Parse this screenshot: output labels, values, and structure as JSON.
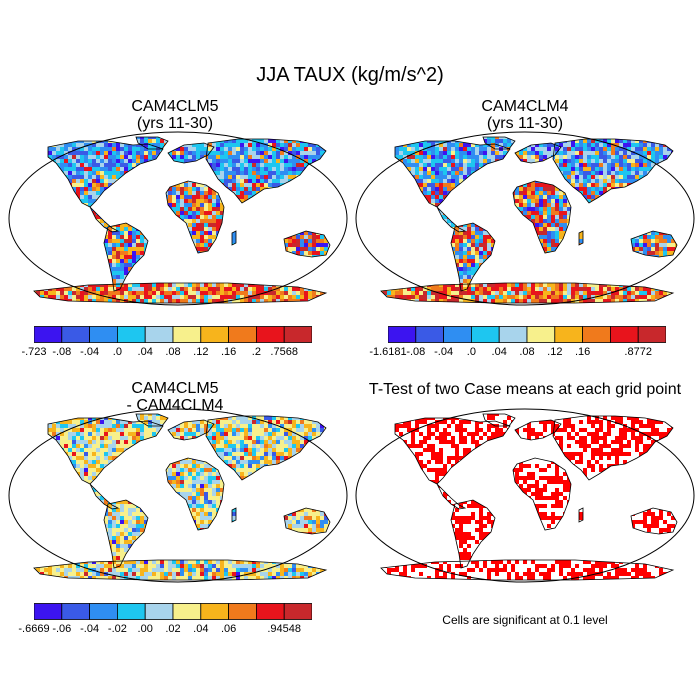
{
  "title": "JJA TAUX (kg/m/s^2)",
  "panels": [
    {
      "id": "cam4clm5",
      "title_line1": "CAM4CLM5",
      "title_line2": "(yrs 11-30)",
      "colorbar": {
        "colors": [
          "#3c14f0",
          "#3a5ae6",
          "#2f8ef2",
          "#1ec6f0",
          "#a8d4ec",
          "#f7f08c",
          "#f7b41c",
          "#f07a1c",
          "#e8141c",
          "#c8282c"
        ],
        "labels": [
          "-.723",
          "-.08",
          "-.04",
          ".0",
          ".04",
          ".08",
          ".12",
          ".16",
          ".2",
          ".7568"
        ]
      }
    },
    {
      "id": "cam4clm4",
      "title_line1": "CAM4CLM4",
      "title_line2": "(yrs 11-30)",
      "colorbar": {
        "colors": [
          "#3c14f0",
          "#3a5ae6",
          "#2f8ef2",
          "#1ec6f0",
          "#a8d4ec",
          "#f7f08c",
          "#f7b41c",
          "#f07a1c",
          "#e8141c",
          "#c8282c"
        ],
        "labels": [
          "-1.6181",
          "-.08",
          "-.04",
          ".0",
          ".04",
          ".08",
          ".12",
          ".16",
          ".8772"
        ]
      }
    },
    {
      "id": "diff",
      "title_line1": "CAM4CLM5",
      "title_line2": "- CAM4CLM4",
      "colorbar": {
        "colors": [
          "#3c14f0",
          "#3a5ae6",
          "#2f8ef2",
          "#1ec6f0",
          "#a8d4ec",
          "#f7f08c",
          "#f7b41c",
          "#f07a1c",
          "#e8141c",
          "#c8282c"
        ],
        "labels": [
          "-.6669",
          "-.06",
          "-.04",
          "-.02",
          ".00",
          ".02",
          ".04",
          ".06",
          ".94548"
        ]
      }
    },
    {
      "id": "ttest",
      "title_line1": "T-Test of two Case means at each grid point",
      "note": "Cells are significant at 0.1 level"
    }
  ]
}
